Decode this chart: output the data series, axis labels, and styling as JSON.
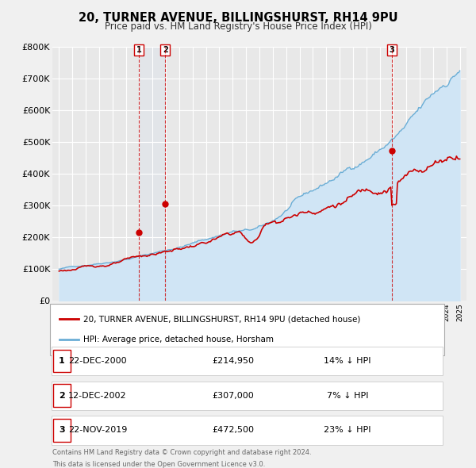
{
  "title": "20, TURNER AVENUE, BILLINGSHURST, RH14 9PU",
  "subtitle": "Price paid vs. HM Land Registry's House Price Index (HPI)",
  "ylim": [
    0,
    800000
  ],
  "yticks": [
    0,
    100000,
    200000,
    300000,
    400000,
    500000,
    600000,
    700000,
    800000
  ],
  "ytick_labels": [
    "£0",
    "£100K",
    "£200K",
    "£300K",
    "£400K",
    "£500K",
    "£600K",
    "£700K",
    "£800K"
  ],
  "hpi_color": "#6baed6",
  "hpi_fill_color": "#d0e5f5",
  "price_color": "#cc0000",
  "bg_color": "#f0f0f0",
  "plot_bg": "#e8e8e8",
  "grid_color": "#ffffff",
  "legend_label_price": "20, TURNER AVENUE, BILLINGSHURST, RH14 9PU (detached house)",
  "legend_label_hpi": "HPI: Average price, detached house, Horsham",
  "transactions": [
    {
      "label": "1",
      "date": "22-DEC-2000",
      "price": 214950,
      "pct": "14%",
      "x_year": 2000.97
    },
    {
      "label": "2",
      "date": "12-DEC-2002",
      "price": 307000,
      "pct": "7%",
      "x_year": 2002.95
    },
    {
      "label": "3",
      "date": "22-NOV-2019",
      "price": 472500,
      "pct": "23%",
      "x_year": 2019.9
    }
  ],
  "footer_line1": "Contains HM Land Registry data © Crown copyright and database right 2024.",
  "footer_line2": "This data is licensed under the Open Government Licence v3.0.",
  "xlim_start": 1994.5,
  "xlim_end": 2025.5,
  "hpi_seed": 42,
  "price_seed": 123
}
